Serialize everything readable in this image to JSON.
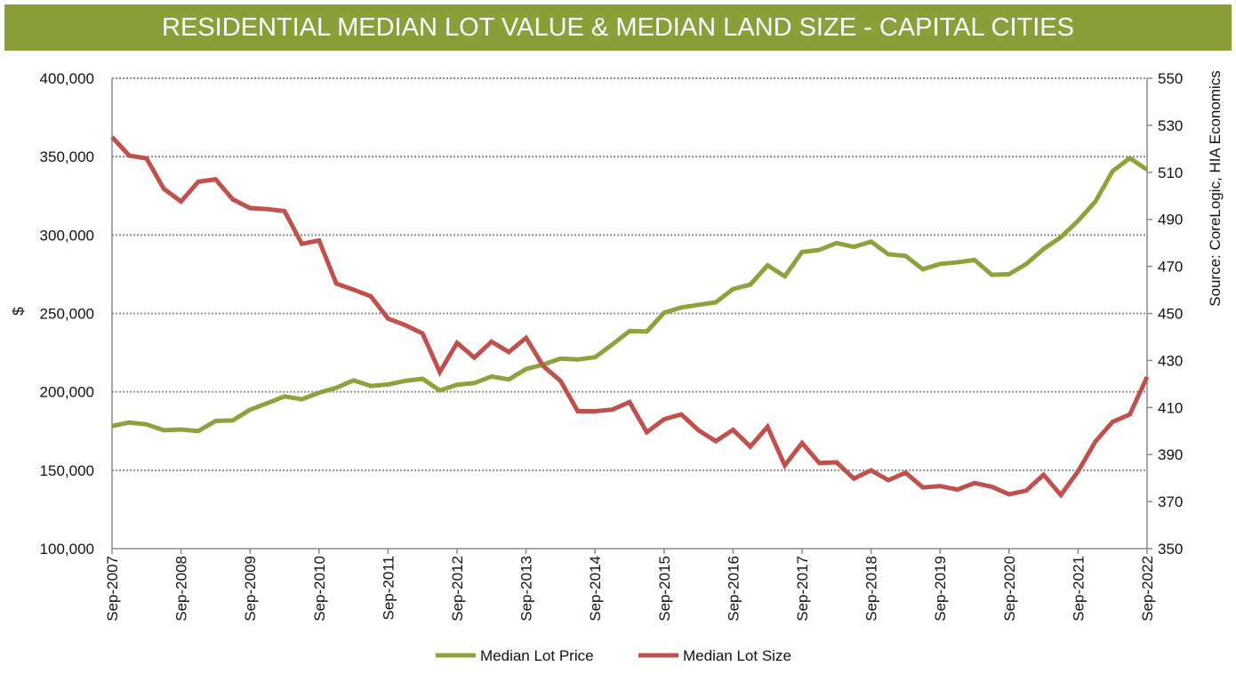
{
  "chart_data": {
    "type": "line",
    "title": "RESIDENTIAL MEDIAN LOT VALUE & MEDIAN LAND SIZE - CAPITAL CITIES",
    "ylabel": "$",
    "y2label": "Source: CoreLogic, HIA Economics",
    "x_frequency": "quarterly",
    "x_range": [
      "Sep-2007",
      "Sep-2022"
    ],
    "x_ticks": [
      "Sep-2007",
      "Sep-2008",
      "Sep-2009",
      "Sep-2010",
      "Sep-2011",
      "Sep-2012",
      "Sep-2013",
      "Sep-2014",
      "Sep-2015",
      "Sep-2016",
      "Sep-2017",
      "Sep-2018",
      "Sep-2019",
      "Sep-2020",
      "Sep-2021",
      "Sep-2022"
    ],
    "ylim": [
      100000,
      400000
    ],
    "y_ticks": [
      "100,000",
      "150,000",
      "200,000",
      "250,000",
      "300,000",
      "350,000",
      "400,000"
    ],
    "y2lim": [
      350,
      550
    ],
    "y2_ticks": [
      "350",
      "370",
      "390",
      "410",
      "430",
      "450",
      "470",
      "490",
      "510",
      "530",
      "550"
    ],
    "grid": "horizontal dotted at left-axis ticks",
    "legend": "bottom",
    "series": [
      {
        "name": "Median Lot Price",
        "axis": "left",
        "color": "#8ca23c",
        "values": [
          178200,
          180500,
          179200,
          175500,
          176000,
          175000,
          181400,
          181800,
          188600,
          192800,
          197100,
          195200,
          199400,
          202600,
          207300,
          203700,
          204700,
          207000,
          208300,
          200900,
          204500,
          205600,
          209800,
          207900,
          214500,
          217400,
          221200,
          220600,
          222100,
          230200,
          238700,
          238500,
          250400,
          253800,
          255500,
          257100,
          265600,
          268400,
          280700,
          273700,
          289200,
          290500,
          294900,
          292400,
          295800,
          287700,
          286700,
          278200,
          281600,
          282600,
          284100,
          274600,
          275000,
          281600,
          291100,
          298600,
          309100,
          321300,
          340800,
          349100,
          341700
        ]
      },
      {
        "name": "Median Lot Size",
        "axis": "right",
        "color": "#c0504d",
        "values": [
          525.0,
          517.1,
          515.9,
          503.0,
          497.6,
          506.0,
          507.0,
          498.5,
          494.8,
          494.4,
          493.5,
          479.6,
          481.0,
          462.7,
          460.1,
          457.3,
          447.8,
          445.0,
          441.5,
          425.1,
          437.5,
          431.2,
          438.0,
          433.6,
          439.6,
          427.6,
          421.3,
          408.4,
          408.4,
          409.1,
          412.3,
          399.5,
          405.0,
          407.1,
          400.3,
          395.7,
          400.5,
          393.4,
          401.8,
          385.4,
          394.9,
          386.4,
          386.7,
          379.8,
          383.3,
          379.1,
          382.3,
          376.0,
          376.6,
          375.1,
          377.9,
          376.3,
          373.1,
          374.7,
          381.4,
          372.8,
          382.9,
          395.5,
          403.9,
          407.1,
          423.0
        ]
      }
    ]
  },
  "colors": {
    "title_bar": "#8a9f3a",
    "grid": "#8c8c8c",
    "axis": "#8c8c8c"
  }
}
